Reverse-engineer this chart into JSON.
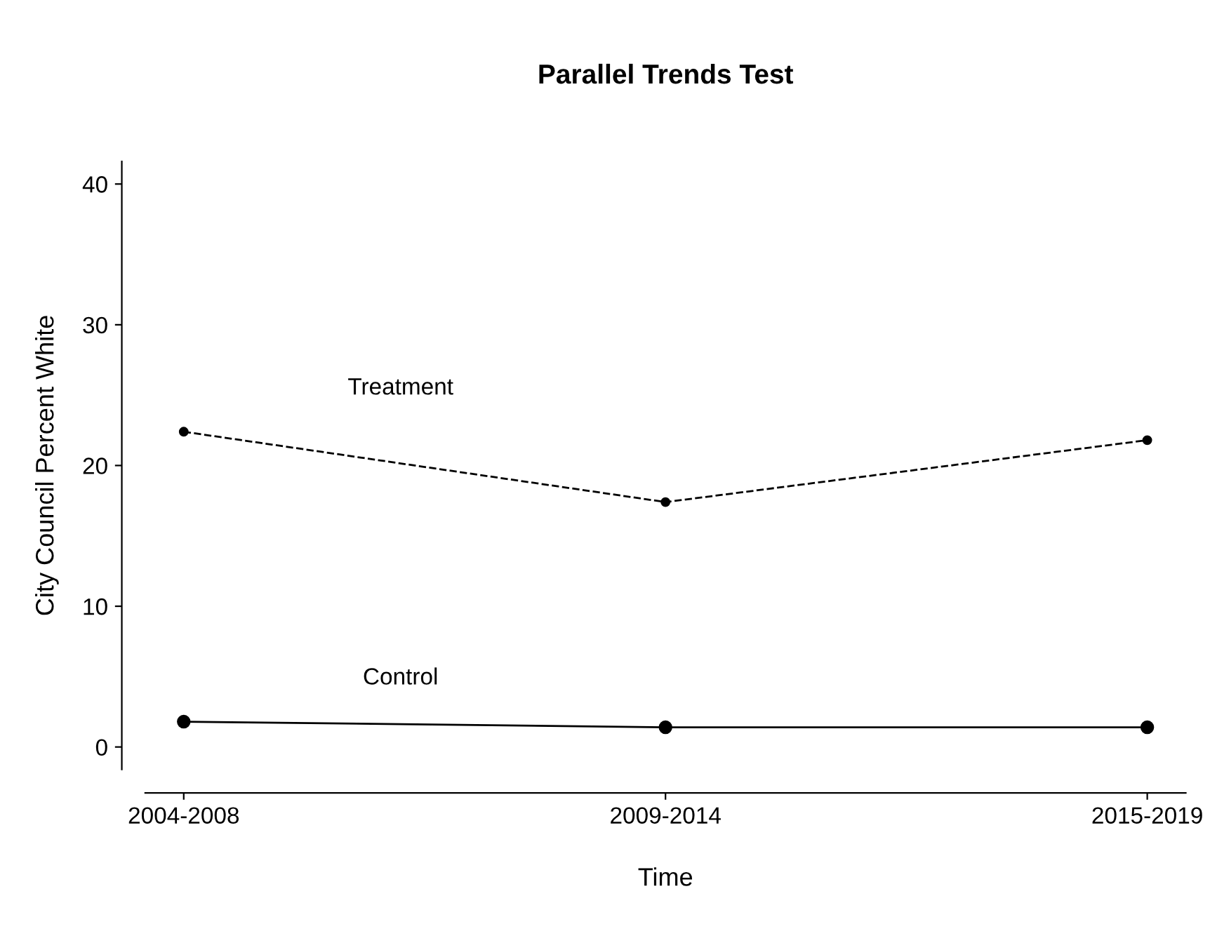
{
  "chart_data": {
    "type": "line",
    "title": "Parallel Trends Test",
    "xlabel": "Time",
    "ylabel": "City Council Percent White",
    "categories": [
      "2004-2008",
      "2009-2014",
      "2015-2019"
    ],
    "series": [
      {
        "name": "Treatment",
        "color": "#000000",
        "values": [
          22.4,
          17.4,
          21.8
        ],
        "line_style": "dashed",
        "marker": "circle"
      },
      {
        "name": "Control",
        "color": "#000000",
        "values": [
          1.8,
          1.4,
          1.4
        ],
        "line_style": "solid",
        "marker": "circle"
      }
    ],
    "ylim": [
      -1.6,
      41.6
    ],
    "yticks": [
      0,
      10,
      20,
      30,
      40
    ],
    "grid": false,
    "legend": false
  }
}
